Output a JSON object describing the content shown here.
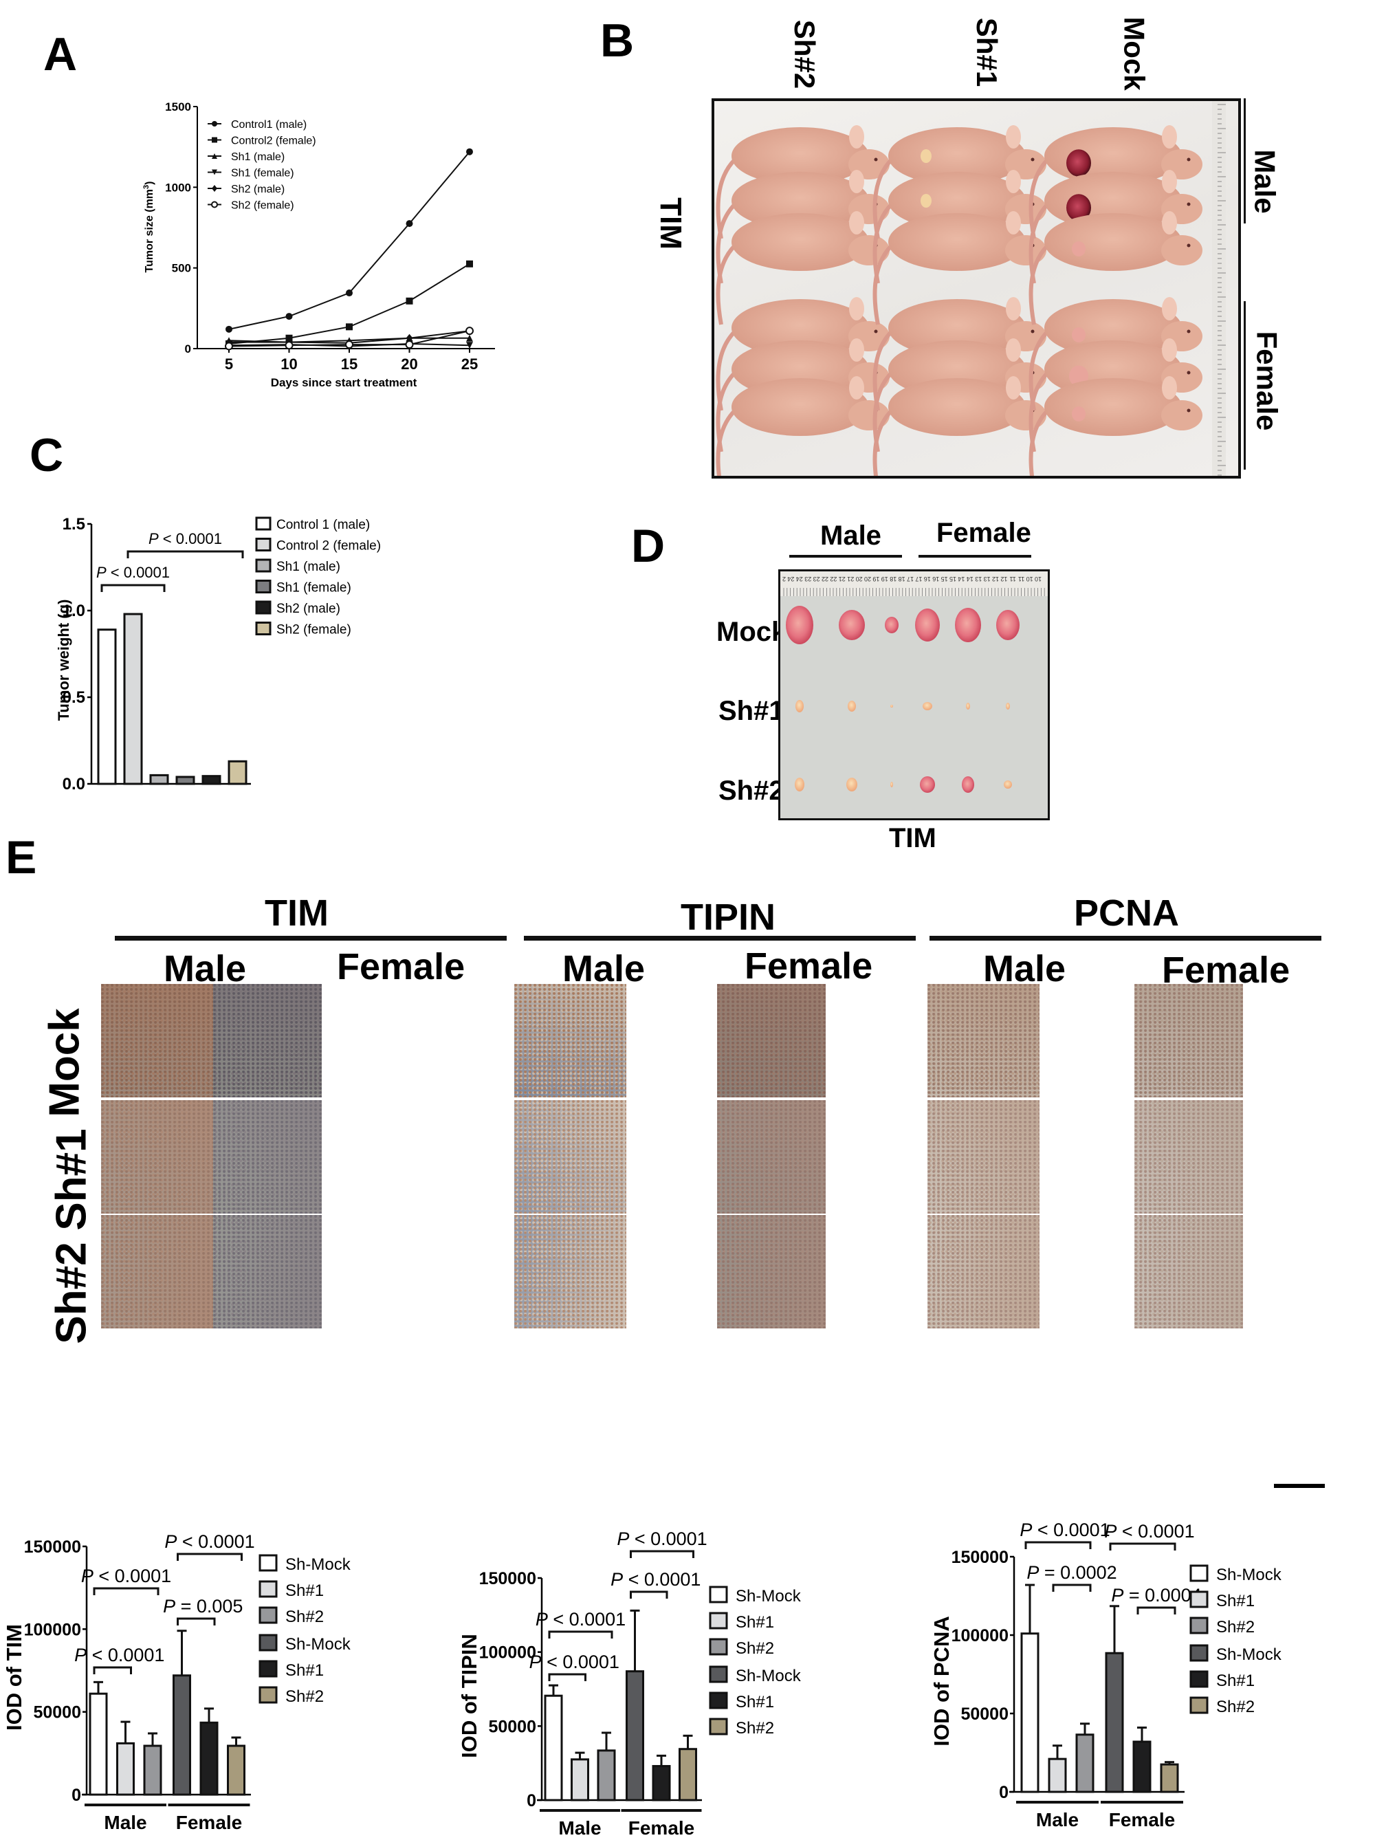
{
  "panels": {
    "A": {
      "letter": "A"
    },
    "B": {
      "letter": "B",
      "column_labels": [
        "Sh#2",
        "Sh#1",
        "Mock"
      ],
      "row_group_labels": [
        "Male",
        "Female"
      ],
      "side_label": "TIM"
    },
    "C": {
      "letter": "C"
    },
    "D": {
      "letter": "D",
      "column_group_labels": [
        "Male",
        "Female"
      ],
      "row_labels": [
        "Mock",
        "Sh#1",
        "Sh#2"
      ],
      "bottom_label": "TIM",
      "ruler_numbers": [
        "2",
        "24",
        "24",
        "23",
        "23",
        "22",
        "22",
        "21",
        "21",
        "20",
        "20",
        "19",
        "19",
        "18",
        "18",
        "17",
        "17",
        "16",
        "16",
        "15",
        "15",
        "14",
        "14",
        "13",
        "13",
        "12",
        "12",
        "11",
        "11",
        "10",
        "10"
      ]
    },
    "E": {
      "letter": "E",
      "marker_groups": [
        "TIM",
        "TIPIN",
        "PCNA"
      ],
      "sex_labels": [
        "Male",
        "Female",
        "Male",
        "Female",
        "Male",
        "Female"
      ],
      "row_labels": [
        "Mock",
        "Sh#1",
        "Sh#2"
      ]
    }
  },
  "chart_data": [
    {
      "id": "A",
      "type": "line",
      "title": "",
      "xlabel": "Days since start treatment",
      "ylabel": "Tumor size (mm³)",
      "ylabel_main": "Tumor size (mm",
      "ylabel_sup": "3",
      "ylabel_close": ")",
      "x": [
        5,
        10,
        15,
        20,
        25
      ],
      "xticks": [
        "5",
        "10",
        "15",
        "20",
        "25"
      ],
      "yticks": [
        "0",
        "500",
        "1000",
        "1500"
      ],
      "ylim": [
        0,
        1500
      ],
      "grid": false,
      "legend_position": "upper-left-inside",
      "series": [
        {
          "name": "Control1 (male)",
          "marker": "circle",
          "values": [
            120,
            200,
            345,
            775,
            1220
          ]
        },
        {
          "name": "Control2 (female)",
          "marker": "square",
          "values": [
            30,
            65,
            135,
            295,
            525
          ]
        },
        {
          "name": "Sh1 (male)",
          "marker": "triangle-up",
          "values": [
            50,
            40,
            50,
            65,
            65
          ]
        },
        {
          "name": "Sh1 (female)",
          "marker": "triangle-down",
          "values": [
            20,
            25,
            15,
            30,
            20
          ]
        },
        {
          "name": "Sh2 (male)",
          "marker": "diamond",
          "values": [
            40,
            40,
            35,
            65,
            110
          ]
        },
        {
          "name": "Sh2 (female)",
          "marker": "open-circle",
          "values": [
            15,
            20,
            25,
            25,
            110
          ]
        }
      ]
    },
    {
      "id": "C",
      "type": "bar",
      "title": "",
      "xlabel": "",
      "ylabel": "Tumor weight (g)",
      "categories": [
        "Control 1 (male)",
        "Control 2 (female)",
        "Sh1 (male)",
        "Sh1 (female)",
        "Sh2 (male)",
        "Sh2 (female)"
      ],
      "values": [
        0.89,
        0.98,
        0.05,
        0.04,
        0.045,
        0.13
      ],
      "colors": [
        "#ffffff",
        "#d9dadb",
        "#b3b4b6",
        "#7c7d80",
        "#1c1c1c",
        "#cfc3a0"
      ],
      "yticks": [
        "0.0",
        "0.5",
        "1.0",
        "1.5"
      ],
      "ylim": [
        0,
        1.5
      ],
      "legend_position": "right",
      "annotations": [
        {
          "text_italic": "P",
          "text": " < 0.0001",
          "from": 0,
          "to": 2
        },
        {
          "text_italic": "P",
          "text": " < 0.0001",
          "from": 1,
          "to": 5
        }
      ]
    },
    {
      "id": "E-TIM",
      "type": "bar",
      "ylabel": "IOD of TIM",
      "groups": [
        "Male",
        "Female"
      ],
      "categories": [
        "Sh-Mock",
        "Sh#1",
        "Sh#2",
        "Sh-Mock",
        "Sh#1",
        "Sh#2"
      ],
      "values": [
        61000,
        31000,
        29500,
        72000,
        43500,
        29500
      ],
      "errors": [
        7000,
        13000,
        7500,
        27000,
        8500,
        5000
      ],
      "colors": [
        "#ffffff",
        "#dcdddf",
        "#97989b",
        "#58595c",
        "#1e1e1f",
        "#a79b7c"
      ],
      "yticks": [
        "0",
        "50000",
        "100000",
        "150000"
      ],
      "ylim": [
        0,
        150000
      ],
      "legend_position": "right",
      "annotations": [
        {
          "text_italic": "P",
          "text": " < 0.0001",
          "from": 0,
          "to": 1
        },
        {
          "text_italic": "P",
          "text": " < 0.0001",
          "from": 0,
          "to": 2
        },
        {
          "text_italic": "P",
          "text": " = 0.005",
          "from": 3,
          "to": 4
        },
        {
          "text_italic": "P",
          "text": " < 0.0001",
          "from": 3,
          "to": 5
        }
      ]
    },
    {
      "id": "E-TIPIN",
      "type": "bar",
      "ylabel": "IOD of TIPIN",
      "groups": [
        "Male",
        "Female"
      ],
      "categories": [
        "Sh-Mock",
        "Sh#1",
        "Sh#2",
        "Sh-Mock",
        "Sh#1",
        "Sh#2"
      ],
      "values": [
        70500,
        27500,
        33500,
        87000,
        23000,
        34500
      ],
      "errors": [
        7000,
        4500,
        12000,
        41000,
        7000,
        9000
      ],
      "colors": [
        "#ffffff",
        "#dcdddf",
        "#97989b",
        "#58595c",
        "#1e1e1f",
        "#a79b7c"
      ],
      "yticks": [
        "0",
        "50000",
        "100000",
        "150000"
      ],
      "ylim": [
        0,
        150000
      ],
      "legend_position": "right",
      "annotations": [
        {
          "text_italic": "P",
          "text": " < 0.0001",
          "from": 0,
          "to": 1
        },
        {
          "text_italic": "P",
          "text": " < 0.0001",
          "from": 0,
          "to": 2
        },
        {
          "text_italic": "P",
          "text": " < 0.0001",
          "from": 3,
          "to": 4
        },
        {
          "text_italic": "P",
          "text": " < 0.0001",
          "from": 3,
          "to": 5
        }
      ]
    },
    {
      "id": "E-PCNA",
      "type": "bar",
      "ylabel": "IOD of PCNA",
      "groups": [
        "Male",
        "Female"
      ],
      "categories": [
        "Sh-Mock",
        "Sh#1",
        "Sh#2",
        "Sh-Mock",
        "Sh#1",
        "Sh#2"
      ],
      "values": [
        101000,
        21000,
        36500,
        88500,
        32000,
        17500
      ],
      "errors": [
        31000,
        8500,
        7000,
        30000,
        9000,
        1500
      ],
      "colors": [
        "#ffffff",
        "#dcdddf",
        "#97989b",
        "#58595c",
        "#1e1e1f",
        "#a79b7c"
      ],
      "yticks": [
        "0",
        "50000",
        "100000",
        "150000"
      ],
      "ylim": [
        0,
        150000
      ],
      "legend_position": "right",
      "annotations": [
        {
          "text_italic": "P",
          "text": " < 0.0001",
          "from": 0,
          "to": 2
        },
        {
          "text_italic": "P",
          "text": " = 0.0002",
          "from": 1,
          "to": 2
        },
        {
          "text_italic": "P",
          "text": " < 0.0001",
          "from": 3,
          "to": 5
        },
        {
          "text_italic": "P",
          "text": " = 0.0004",
          "from": 4,
          "to": 5
        }
      ]
    }
  ]
}
